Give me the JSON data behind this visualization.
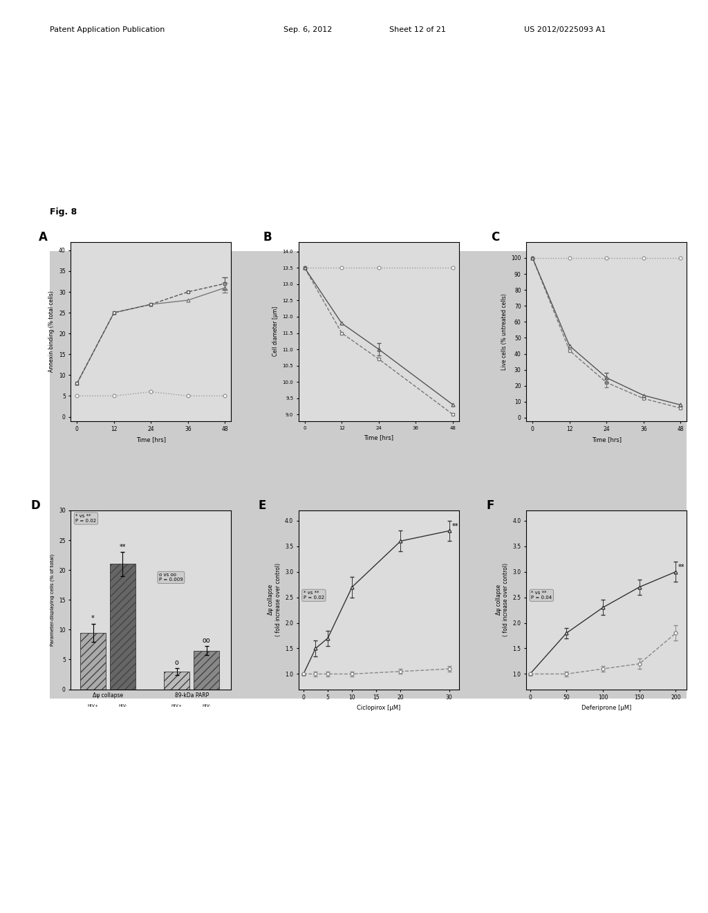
{
  "fig_label": "Fig. 8",
  "page_bg": "#ffffff",
  "panel_bg": "#dcdcdc",
  "header": {
    "left": "Patent Application Publication",
    "center1": "Sep. 6, 2012",
    "center2": "Sheet 12 of 21",
    "right": "US 2012/0225093 A1"
  },
  "A": {
    "label": "A",
    "xlabel": "Time [hrs]",
    "ylabel": "Annexin binding (% total cells)",
    "xticks": [
      0,
      12,
      24,
      36,
      48
    ],
    "yticks": [
      0,
      5,
      10,
      15,
      20,
      25,
      30,
      35,
      40
    ],
    "ylim": [
      -1,
      42
    ],
    "xlim": [
      -2,
      50
    ],
    "line1_x": [
      0,
      12,
      24,
      36,
      48
    ],
    "line1_y": [
      8,
      25,
      27,
      30,
      32
    ],
    "line2_x": [
      0,
      12,
      24,
      36,
      48
    ],
    "line2_y": [
      8,
      25,
      27,
      28,
      31
    ],
    "line3_x": [
      0,
      12,
      24,
      36,
      48
    ],
    "line3_y": [
      5,
      5,
      6,
      5,
      5
    ],
    "line1_color": "#555555",
    "line2_color": "#777777",
    "line3_color": "#999999",
    "line1_style": "--",
    "line2_style": "-",
    "line3_style": ":"
  },
  "B": {
    "label": "B",
    "xlabel": "Time [hrs]",
    "ylabel": "Cell diameter [µm]",
    "xticks": [
      0,
      12,
      24,
      36,
      48
    ],
    "yticks": [
      9.0,
      9.5,
      10.0,
      10.5,
      11.0,
      11.5,
      12.0,
      12.5,
      13.0,
      13.5,
      14.0
    ],
    "ylim": [
      8.8,
      14.3
    ],
    "xlim": [
      -2,
      50
    ],
    "line1_x": [
      0,
      12,
      24,
      48
    ],
    "line1_y": [
      13.5,
      11.8,
      11.0,
      9.3
    ],
    "line2_x": [
      0,
      12,
      24,
      48
    ],
    "line2_y": [
      13.5,
      11.5,
      10.7,
      9.0
    ],
    "line3_x": [
      0,
      12,
      24,
      48
    ],
    "line3_y": [
      13.5,
      13.5,
      13.5,
      13.5
    ],
    "line1_color": "#555555",
    "line2_color": "#777777",
    "line3_color": "#999999",
    "line1_style": "-",
    "line2_style": "--",
    "line3_style": ":"
  },
  "C": {
    "label": "C",
    "xlabel": "Time [hrs]",
    "ylabel": "Live cells (% untreated cells)",
    "xticks": [
      0,
      12,
      24,
      36,
      48
    ],
    "yticks": [
      0,
      10,
      20,
      30,
      40,
      50,
      60,
      70,
      80,
      90,
      100
    ],
    "ylim": [
      -2,
      110
    ],
    "xlim": [
      -2,
      50
    ],
    "line1_x": [
      0,
      12,
      24,
      36,
      48
    ],
    "line1_y": [
      100,
      45,
      25,
      14,
      8
    ],
    "line2_x": [
      0,
      12,
      24,
      36,
      48
    ],
    "line2_y": [
      100,
      42,
      22,
      12,
      6
    ],
    "line3_x": [
      0,
      12,
      24,
      36,
      48
    ],
    "line3_y": [
      100,
      100,
      100,
      100,
      100
    ],
    "line1_color": "#555555",
    "line2_color": "#777777",
    "line3_color": "#999999",
    "line1_style": "-",
    "line2_style": "--",
    "line3_style": ":"
  },
  "D": {
    "label": "D",
    "ylabel": "Parameter-displaying cells (% of total)",
    "group1_label": "Δψ collapse",
    "group2_label": "89-kDa PARP",
    "bar1_height": 9.5,
    "bar2_height": 21.0,
    "bar3_height": 3.0,
    "bar4_height": 6.5,
    "bar1_color": "#aaaaaa",
    "bar2_color": "#666666",
    "bar3_color": "#bbbbbb",
    "bar4_color": "#888888",
    "bar1_hatch": "///",
    "bar2_hatch": "///",
    "bar3_hatch": "///",
    "bar4_hatch": "///",
    "bar1_err": 1.5,
    "bar2_err": 2.0,
    "bar3_err": 0.6,
    "bar4_err": 0.8,
    "yticks": [
      0,
      5,
      10,
      15,
      20,
      25,
      30
    ],
    "ylim": [
      0,
      30
    ],
    "stat_box1": "* vs **\nP = 0.02",
    "stat_box2": "o vs oo\nP = 0.009"
  },
  "E": {
    "label": "E",
    "xlabel": "Ciclopirox [µM]",
    "ylabel": "Δψ collapse\n( fold increase over control)",
    "xlim": [
      -1,
      32
    ],
    "ylim": [
      0.7,
      4.2
    ],
    "yticks": [
      1.0,
      1.5,
      2.0,
      2.5,
      3.0,
      3.5,
      4.0
    ],
    "xticks": [
      0,
      5,
      10,
      15,
      20,
      30
    ],
    "line1_x": [
      0,
      2.5,
      5,
      10,
      20,
      30
    ],
    "line1_y": [
      1.0,
      1.5,
      1.7,
      2.7,
      3.6,
      3.8
    ],
    "line2_x": [
      0,
      2.5,
      5,
      10,
      20,
      30
    ],
    "line2_y": [
      1.0,
      1.0,
      1.0,
      1.0,
      1.05,
      1.1
    ],
    "line1_err": [
      0.0,
      0.15,
      0.15,
      0.2,
      0.2,
      0.2
    ],
    "line2_err": [
      0.0,
      0.05,
      0.05,
      0.05,
      0.05,
      0.05
    ],
    "line1_color": "#333333",
    "line2_color": "#888888",
    "line1_style": "-",
    "line2_style": "--",
    "stat_box": "* vs **\nP = 0.02"
  },
  "F": {
    "label": "F",
    "xlabel": "Deferiprone [µM]",
    "ylabel": "Δψ collapse\n( fold increase over control)",
    "xticks": [
      0,
      50,
      100,
      150,
      200
    ],
    "xlim": [
      -5,
      215
    ],
    "ylim": [
      0.7,
      4.2
    ],
    "yticks": [
      1.0,
      1.5,
      2.0,
      2.5,
      3.0,
      3.5,
      4.0
    ],
    "line1_x": [
      0,
      50,
      100,
      150,
      200
    ],
    "line1_y": [
      1.0,
      1.8,
      2.3,
      2.7,
      3.0
    ],
    "line2_x": [
      0,
      50,
      100,
      150,
      200
    ],
    "line2_y": [
      1.0,
      1.0,
      1.1,
      1.2,
      1.8
    ],
    "line1_err": [
      0.0,
      0.1,
      0.15,
      0.15,
      0.2
    ],
    "line2_err": [
      0.0,
      0.05,
      0.05,
      0.1,
      0.15
    ],
    "line1_color": "#333333",
    "line2_color": "#888888",
    "line1_style": "-",
    "line2_style": "--",
    "stat_box": "* vs **\nP = 0.04"
  }
}
